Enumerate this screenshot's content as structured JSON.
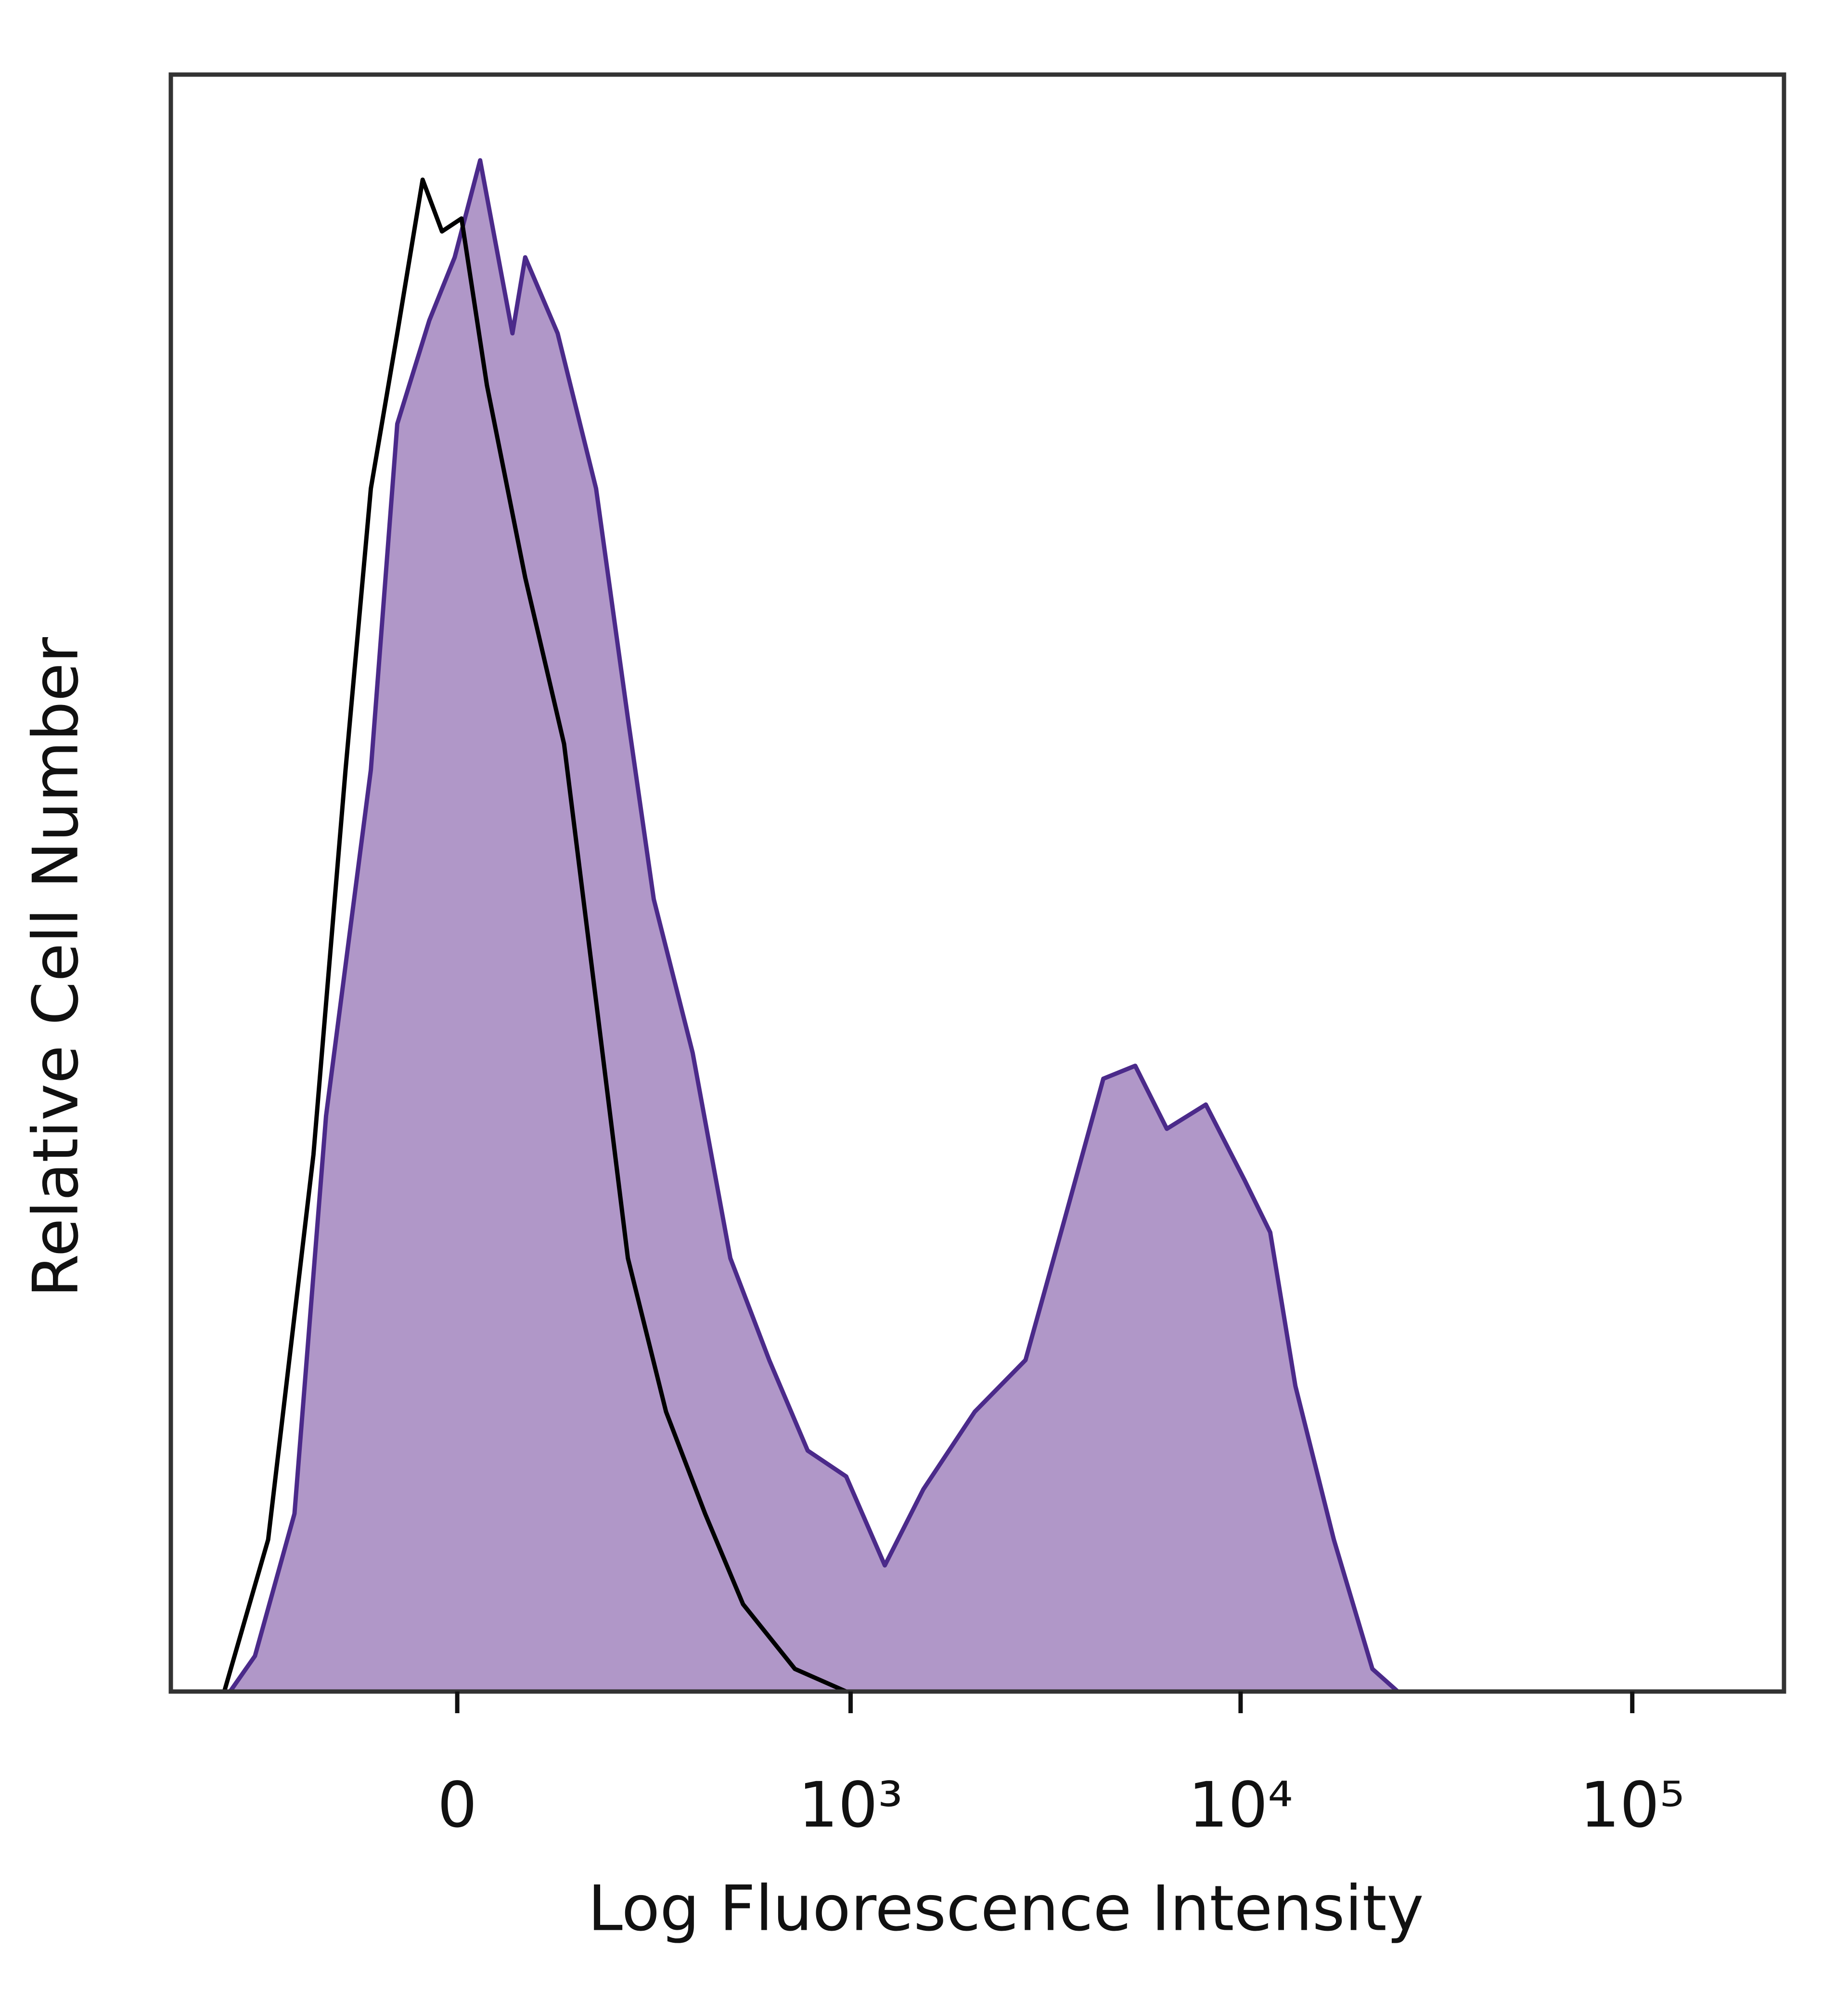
{
  "chart_data": {
    "type": "histogram-overlay",
    "x_label": "Log Fluorescence Intensity",
    "y_label": "Relative Cell Number",
    "xscale": "biexponential",
    "xlim": [
      -520,
      244000
    ],
    "xticks": [
      0,
      {
        "value": 1000,
        "label": "10³"
      },
      {
        "value": 10000,
        "label": "10⁴"
      },
      {
        "value": 100000,
        "label": "10⁵"
      }
    ],
    "ylim": [
      0,
      100
    ],
    "series": [
      {
        "color": "#4b2a8a",
        "fill": "#b097c8",
        "x": [
          -354,
          -298,
          -222,
          -170,
          -106,
          -72,
          -33,
          -3,
          27,
          66,
          82,
          125,
          182,
          236,
          286,
          374,
          478,
          610,
          772,
          974,
          1227,
          1542,
          2090,
          2820,
          3550,
          4460,
          5380,
          6480,
          8150,
          10250,
          11900,
          13800,
          17300,
          21700,
          25200
        ],
        "values": [
          0,
          2.2,
          11.0,
          35.6,
          57.0,
          78.4,
          84.8,
          88.7,
          94.7,
          84.0,
          88.7,
          84.0,
          74.4,
          60.2,
          49.0,
          39.5,
          26.8,
          20.5,
          14.9,
          13.3,
          7.8,
          12.5,
          17.3,
          20.5,
          29.2,
          37.9,
          38.7,
          34.8,
          36.3,
          31.6,
          28.4,
          18.9,
          9.4,
          1.4,
          0
        ]
      },
      {
        "color": "#000000",
        "x": [
          -368,
          -271,
          -190,
          -141,
          -106,
          -72,
          -41,
          -18,
          5,
          35,
          82,
          134,
          182,
          236,
          312,
          406,
          518,
          714,
          974
        ],
        "values": [
          0,
          9.4,
          33.2,
          57.0,
          74.4,
          84.0,
          93.5,
          90.3,
          91.1,
          80.8,
          68.9,
          58.6,
          42.7,
          26.8,
          17.3,
          11.0,
          5.4,
          1.4,
          0
        ]
      }
    ]
  }
}
